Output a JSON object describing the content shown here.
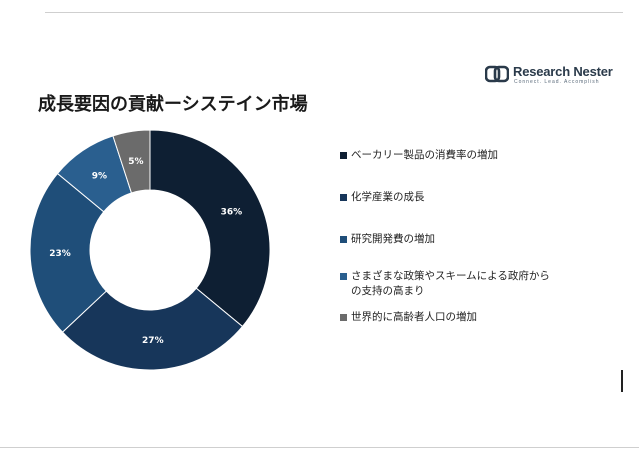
{
  "brand": {
    "name": "Research Nester",
    "tagline": "Connect. Lead. Accomplish"
  },
  "chart_data": {
    "type": "pie",
    "title": "成長要因の貢献ーシステイン市場",
    "categories": [
      "ベーカリー製品の消費率の増加",
      "化学産業の成長",
      "研究開発費の増加",
      "さまざまな政策やスキームによる政府からの支持の高まり",
      "世界的に高齢者人口の増加"
    ],
    "legend_lines": [
      [
        "ベーカリー製品の消費率の増加"
      ],
      [
        "化学産業の成長"
      ],
      [
        "研究開発費の増加"
      ],
      [
        "さまざまな政策やスキームによる政府から",
        "の支持の高まり"
      ],
      [
        "世界的に高齢者人口の増加"
      ]
    ],
    "values": [
      36,
      27,
      23,
      9,
      5
    ],
    "labels": [
      "36%",
      "27%",
      "23%",
      "9%",
      "5%"
    ],
    "colors": [
      "#0e1f33",
      "#17365a",
      "#1f4e79",
      "#2a5f8f",
      "#6b6b6b"
    ],
    "donut": true,
    "legend_position": "right"
  }
}
